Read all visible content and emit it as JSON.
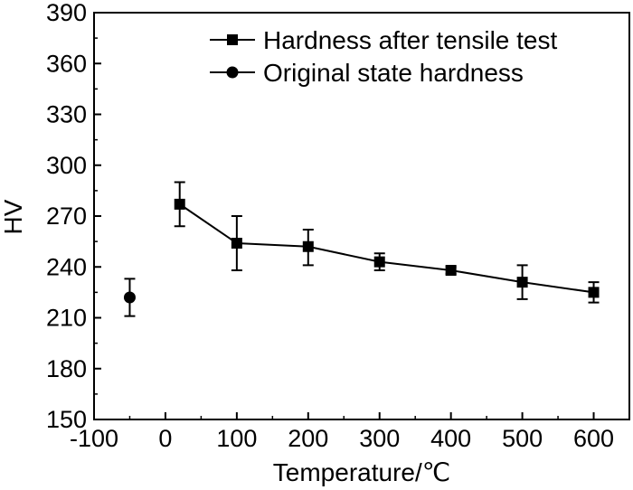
{
  "chart_data": {
    "type": "scatter",
    "xlabel": "Temperature/℃",
    "ylabel": "HV",
    "xlim": [
      -100,
      650
    ],
    "ylim": [
      150,
      390
    ],
    "xticks": [
      -100,
      0,
      100,
      200,
      300,
      400,
      500,
      600
    ],
    "yticks": [
      150,
      180,
      210,
      240,
      270,
      300,
      330,
      360,
      390
    ],
    "grid": false,
    "legend_position": "top-right",
    "series": [
      {
        "name": "Hardness after tensile test",
        "marker": "square",
        "line": true,
        "color": "#000000",
        "x": [
          20,
          100,
          200,
          300,
          400,
          500,
          600
        ],
        "y": [
          277,
          254,
          252,
          243,
          238,
          231,
          225
        ],
        "err_low": [
          13,
          16,
          11,
          5,
          2,
          10,
          6
        ],
        "err_high": [
          13,
          16,
          10,
          5,
          2,
          10,
          6
        ]
      },
      {
        "name": "Original state hardness",
        "marker": "circle",
        "line": false,
        "color": "#000000",
        "x": [
          -50
        ],
        "y": [
          222
        ],
        "err_low": [
          11
        ],
        "err_high": [
          11
        ]
      }
    ]
  }
}
